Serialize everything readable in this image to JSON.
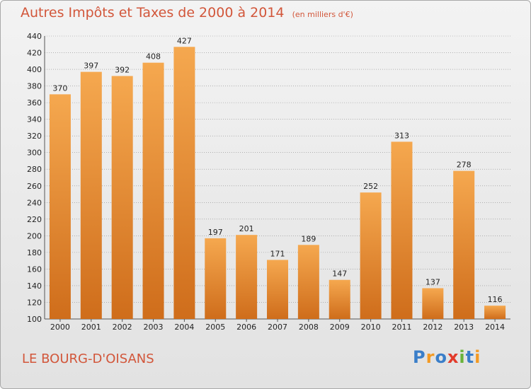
{
  "title": "Autres Impôts et Taxes de 2000 à 2014",
  "unit": "(en milliers d'€)",
  "place": "LE BOURG-D'OISANS",
  "logo": {
    "text": "Proxiti",
    "letters": [
      "P",
      "r",
      "o",
      "x",
      "i",
      "t",
      "i"
    ],
    "colors": [
      "#3a7ec9",
      "#f39a23",
      "#3a7ec9",
      "#e23b2b",
      "#69b33a",
      "#3a7ec9",
      "#f39a23"
    ]
  },
  "colors": {
    "accent": "#d2563a",
    "bar_top": "#f5a84f",
    "bar_bottom": "#cf6d1b",
    "grid": "#8a8a8a",
    "axis_text": "#222222"
  },
  "chart_data": {
    "type": "bar",
    "categories": [
      "2000",
      "2001",
      "2002",
      "2003",
      "2004",
      "2005",
      "2006",
      "2007",
      "2008",
      "2009",
      "2010",
      "2011",
      "2012",
      "2013",
      "2014"
    ],
    "values": [
      370,
      397,
      392,
      408,
      427,
      197,
      201,
      171,
      189,
      147,
      252,
      313,
      137,
      278,
      116
    ],
    "ylim": [
      100,
      440
    ],
    "yticks": [
      100,
      120,
      140,
      160,
      180,
      200,
      220,
      240,
      260,
      280,
      300,
      320,
      340,
      360,
      380,
      400,
      420,
      440
    ],
    "grid": true,
    "data_labels": true
  }
}
